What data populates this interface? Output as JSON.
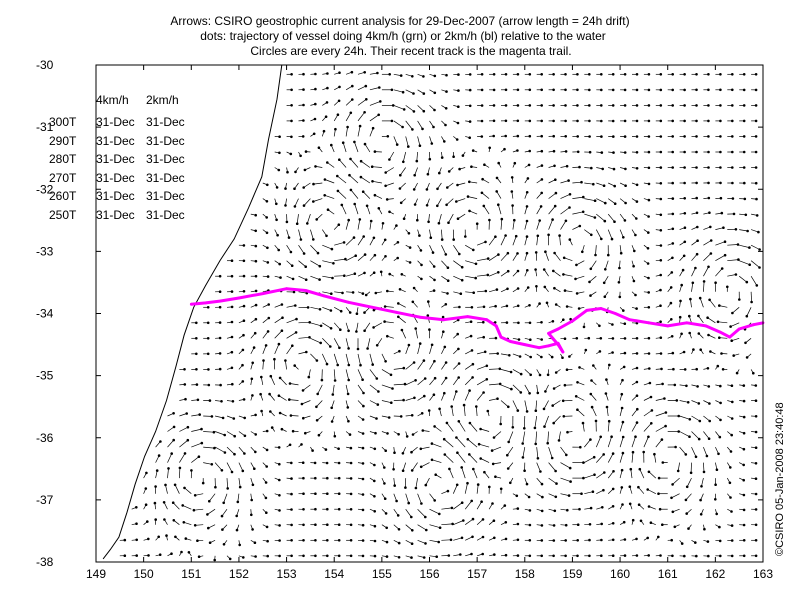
{
  "title": {
    "line1": "Arrows: CSIRO geostrophic current analysis for 29-Dec-2007 (arrow length = 24h drift)",
    "line2": "dots: trajectory of vessel doing 4km/h (grn) or 2km/h (bl) relative to the water",
    "line3": "Circles are every 24h. Their recent track is the magenta trail."
  },
  "legend_table": {
    "headers": [
      "4km/h",
      "2km/h"
    ],
    "rows": [
      {
        "heading": "300T",
        "v4": "31-Dec",
        "v2": "31-Dec"
      },
      {
        "heading": "290T",
        "v4": "31-Dec",
        "v2": "31-Dec"
      },
      {
        "heading": "280T",
        "v4": "31-Dec",
        "v2": "31-Dec"
      },
      {
        "heading": "270T",
        "v4": "31-Dec",
        "v2": "31-Dec"
      },
      {
        "heading": "260T",
        "v4": "31-Dec",
        "v2": "31-Dec"
      },
      {
        "heading": "250T",
        "v4": "31-Dec",
        "v2": "31-Dec"
      }
    ]
  },
  "credit": "©CSIRO 05-Jan-2008 23:40:48",
  "colors": {
    "track": "#ff00ff",
    "arrows": "#000000",
    "coast": "#000000"
  },
  "chart_data": {
    "type": "scatter",
    "description_kind": "vector field map with vessel track",
    "xlim": [
      149,
      163
    ],
    "ylim": [
      -38,
      -30
    ],
    "x_ticks": [
      "149",
      "150",
      "151",
      "152",
      "153",
      "154",
      "155",
      "156",
      "157",
      "158",
      "159",
      "160",
      "161",
      "162",
      "163"
    ],
    "y_ticks": [
      "-30",
      "-31",
      "-32",
      "-33",
      "-34",
      "-35",
      "-36",
      "-37",
      "-38"
    ],
    "grid": false,
    "eddies": [
      {
        "x": 155.0,
        "y": -31.2,
        "rotation": "cw"
      },
      {
        "x": 153.9,
        "y": -32.6,
        "rotation": "ccw"
      },
      {
        "x": 156.9,
        "y": -32.7,
        "rotation": "ccw"
      },
      {
        "x": 159.1,
        "y": -32.8,
        "rotation": "cw"
      },
      {
        "x": 162.3,
        "y": -33.6,
        "rotation": "cw"
      },
      {
        "x": 153.3,
        "y": -34.8,
        "rotation": "cw"
      },
      {
        "x": 155.2,
        "y": -34.6,
        "rotation": "ccw"
      },
      {
        "x": 157.3,
        "y": -35.6,
        "rotation": "cw"
      },
      {
        "x": 151.2,
        "y": -36.6,
        "rotation": "cw"
      },
      {
        "x": 156.2,
        "y": -36.8,
        "rotation": "ccw"
      },
      {
        "x": 159.0,
        "y": -36.0,
        "rotation": "ccw"
      },
      {
        "x": 161.0,
        "y": -36.3,
        "rotation": "cw"
      }
    ],
    "track": {
      "x": [
        151.0,
        151.3,
        151.6,
        152.0,
        152.5,
        153.0,
        153.4,
        153.8,
        154.3,
        154.8,
        155.3,
        155.8,
        156.3,
        156.8,
        157.2,
        157.4,
        157.5,
        157.7,
        158.0,
        158.3,
        158.5,
        158.7,
        158.8,
        158.7,
        158.5,
        158.7,
        159.0,
        159.3,
        159.6,
        159.9,
        160.2,
        160.6,
        161.0,
        161.4,
        161.8,
        162.1,
        162.3,
        162.5,
        162.8,
        163.0
      ],
      "y": [
        -33.85,
        -33.83,
        -33.8,
        -33.75,
        -33.68,
        -33.6,
        -33.63,
        -33.72,
        -33.82,
        -33.9,
        -33.98,
        -34.06,
        -34.1,
        -34.05,
        -34.1,
        -34.2,
        -34.38,
        -34.45,
        -34.5,
        -34.55,
        -34.52,
        -34.48,
        -34.62,
        -34.5,
        -34.32,
        -34.25,
        -34.12,
        -33.95,
        -33.92,
        -34.0,
        -34.1,
        -34.15,
        -34.2,
        -34.15,
        -34.2,
        -34.3,
        -34.38,
        -34.25,
        -34.18,
        -34.15
      ]
    },
    "coast": {
      "x": [
        152.9,
        152.8,
        152.62,
        152.48,
        152.2,
        151.9,
        151.6,
        151.3,
        151.05,
        150.85,
        150.68,
        150.48,
        150.25,
        150.02,
        149.82,
        149.65,
        149.48,
        149.3,
        149.15
      ],
      "y": [
        -30.0,
        -30.55,
        -31.2,
        -31.8,
        -32.3,
        -32.8,
        -33.15,
        -33.55,
        -33.9,
        -34.35,
        -34.85,
        -35.4,
        -35.9,
        -36.3,
        -36.75,
        -37.2,
        -37.6,
        -37.8,
        -37.95
      ]
    }
  }
}
